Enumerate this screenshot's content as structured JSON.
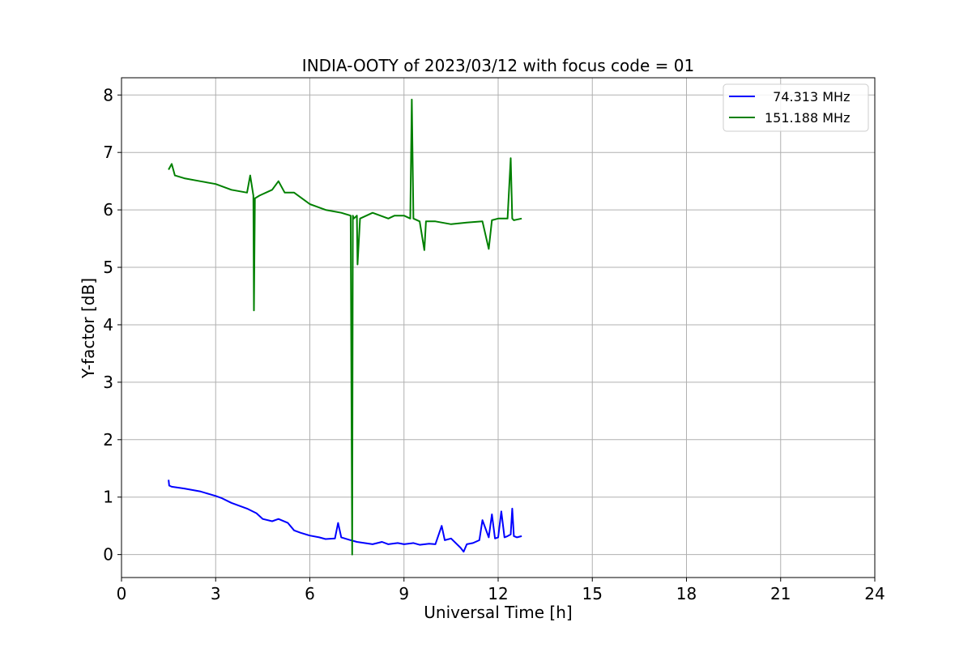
{
  "chart_data": {
    "type": "line",
    "title": "INDIA-OOTY of 2023/03/12 with focus code = 01",
    "xlabel": "Universal Time [h]",
    "ylabel": "Y-factor [dB]",
    "xlim": [
      0,
      24
    ],
    "ylim": [
      -0.4,
      8.3
    ],
    "xticks": [
      0,
      3,
      6,
      9,
      12,
      15,
      18,
      21,
      24
    ],
    "yticks": [
      0,
      1,
      2,
      3,
      4,
      5,
      6,
      7,
      8
    ],
    "grid": true,
    "legend_position": "top-right",
    "series": [
      {
        "name": "  74.313 MHz",
        "color": "#0000ff",
        "x": [
          1.5,
          1.52,
          1.6,
          2.0,
          2.5,
          3.0,
          3.2,
          3.5,
          4.0,
          4.3,
          4.5,
          4.8,
          5.0,
          5.3,
          5.5,
          5.7,
          6.0,
          6.3,
          6.5,
          6.8,
          6.9,
          7.0,
          7.3,
          7.5,
          8.0,
          8.3,
          8.5,
          8.8,
          9.0,
          9.3,
          9.5,
          9.8,
          10.0,
          10.2,
          10.3,
          10.5,
          10.8,
          10.9,
          11.0,
          11.2,
          11.4,
          11.5,
          11.7,
          11.8,
          11.9,
          12.0,
          12.1,
          12.2,
          12.3,
          12.4,
          12.45,
          12.5,
          12.6,
          12.75
        ],
        "y": [
          1.3,
          1.2,
          1.18,
          1.15,
          1.1,
          1.02,
          0.98,
          0.9,
          0.8,
          0.72,
          0.62,
          0.58,
          0.62,
          0.55,
          0.42,
          0.38,
          0.33,
          0.3,
          0.27,
          0.28,
          0.55,
          0.3,
          0.25,
          0.22,
          0.18,
          0.22,
          0.18,
          0.2,
          0.18,
          0.2,
          0.17,
          0.19,
          0.18,
          0.5,
          0.25,
          0.28,
          0.12,
          0.05,
          0.18,
          0.2,
          0.25,
          0.6,
          0.3,
          0.7,
          0.28,
          0.3,
          0.75,
          0.3,
          0.32,
          0.35,
          0.8,
          0.32,
          0.3,
          0.32
        ]
      },
      {
        "name": "151.188 MHz",
        "color": "#008000",
        "x": [
          1.5,
          1.6,
          1.7,
          2.0,
          2.5,
          3.0,
          3.5,
          4.0,
          4.1,
          4.2,
          4.22,
          4.25,
          4.4,
          4.8,
          5.0,
          5.2,
          5.5,
          6.0,
          6.5,
          7.0,
          7.3,
          7.35,
          7.37,
          7.4,
          7.5,
          7.52,
          7.6,
          8.0,
          8.5,
          8.7,
          9.0,
          9.2,
          9.25,
          9.3,
          9.5,
          9.65,
          9.7,
          10.0,
          10.5,
          11.0,
          11.5,
          11.7,
          11.8,
          12.0,
          12.3,
          12.4,
          12.45,
          12.5,
          12.75
        ],
        "y": [
          6.7,
          6.8,
          6.6,
          6.55,
          6.5,
          6.45,
          6.35,
          6.3,
          6.6,
          6.25,
          4.25,
          6.2,
          6.25,
          6.35,
          6.5,
          6.3,
          6.3,
          6.1,
          6.0,
          5.95,
          5.9,
          0.0,
          5.9,
          5.85,
          5.9,
          5.05,
          5.85,
          5.95,
          5.85,
          5.9,
          5.9,
          5.85,
          7.92,
          5.85,
          5.8,
          5.3,
          5.8,
          5.8,
          5.75,
          5.78,
          5.8,
          5.32,
          5.82,
          5.85,
          5.85,
          6.9,
          5.85,
          5.82,
          5.85
        ]
      }
    ]
  }
}
